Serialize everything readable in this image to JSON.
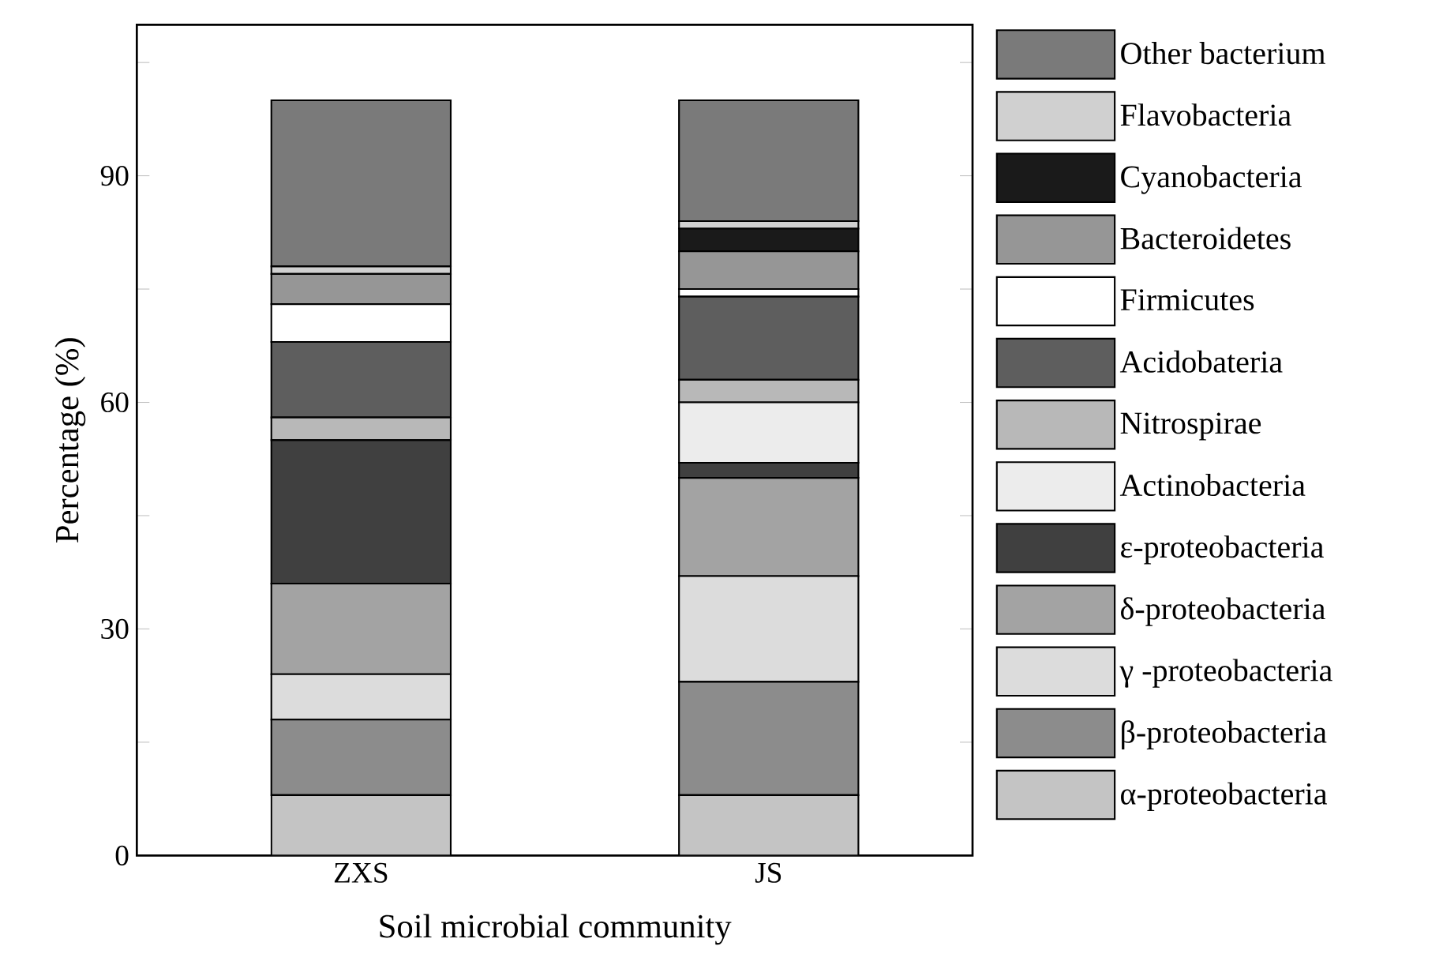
{
  "chart_data": {
    "type": "bar",
    "stacked": true,
    "xlabel": "Soil microbial community",
    "ylabel": "Percentage (%)",
    "categories": [
      "ZXS",
      "JS"
    ],
    "series": [
      {
        "name": "α-proteobacteria",
        "color": "#c4c4c4",
        "values": [
          8,
          8
        ]
      },
      {
        "name": "β-proteobacteria",
        "color": "#8c8c8c",
        "values": [
          10,
          15
        ]
      },
      {
        "name": "γ -proteobacteria",
        "color": "#dcdcdc",
        "values": [
          6,
          14
        ]
      },
      {
        "name": "δ-proteobacteria",
        "color": "#a3a3a3",
        "values": [
          12,
          13
        ]
      },
      {
        "name": "ε-proteobacteria",
        "color": "#404040",
        "values": [
          19,
          2
        ]
      },
      {
        "name": "Actinobacteria",
        "color": "#ececec",
        "values": [
          0,
          8
        ]
      },
      {
        "name": "Nitrospirae",
        "color": "#b8b8b8",
        "values": [
          3,
          3
        ]
      },
      {
        "name": "Acidobateria",
        "color": "#5e5e5e",
        "values": [
          10,
          11
        ]
      },
      {
        "name": "Firmicutes",
        "color": "#ffffff",
        "values": [
          5,
          1
        ]
      },
      {
        "name": "Bacteroidetes",
        "color": "#969696",
        "values": [
          4,
          5
        ]
      },
      {
        "name": "Cyanobacteria",
        "color": "#1a1a1a",
        "values": [
          0,
          3
        ]
      },
      {
        "name": "Flavobacteria",
        "color": "#d0d0d0",
        "values": [
          1,
          1
        ]
      },
      {
        "name": "Other bacterium",
        "color": "#7a7a7a",
        "values": [
          22,
          16
        ]
      }
    ],
    "ylim": [
      0,
      110
    ],
    "yticks": [
      0,
      {
        "value": 15,
        "label": null
      },
      30,
      {
        "value": 45,
        "label": null
      },
      60,
      {
        "value": 75,
        "label": null
      },
      90,
      {
        "value": 105,
        "label": null
      }
    ],
    "legend": "right"
  }
}
